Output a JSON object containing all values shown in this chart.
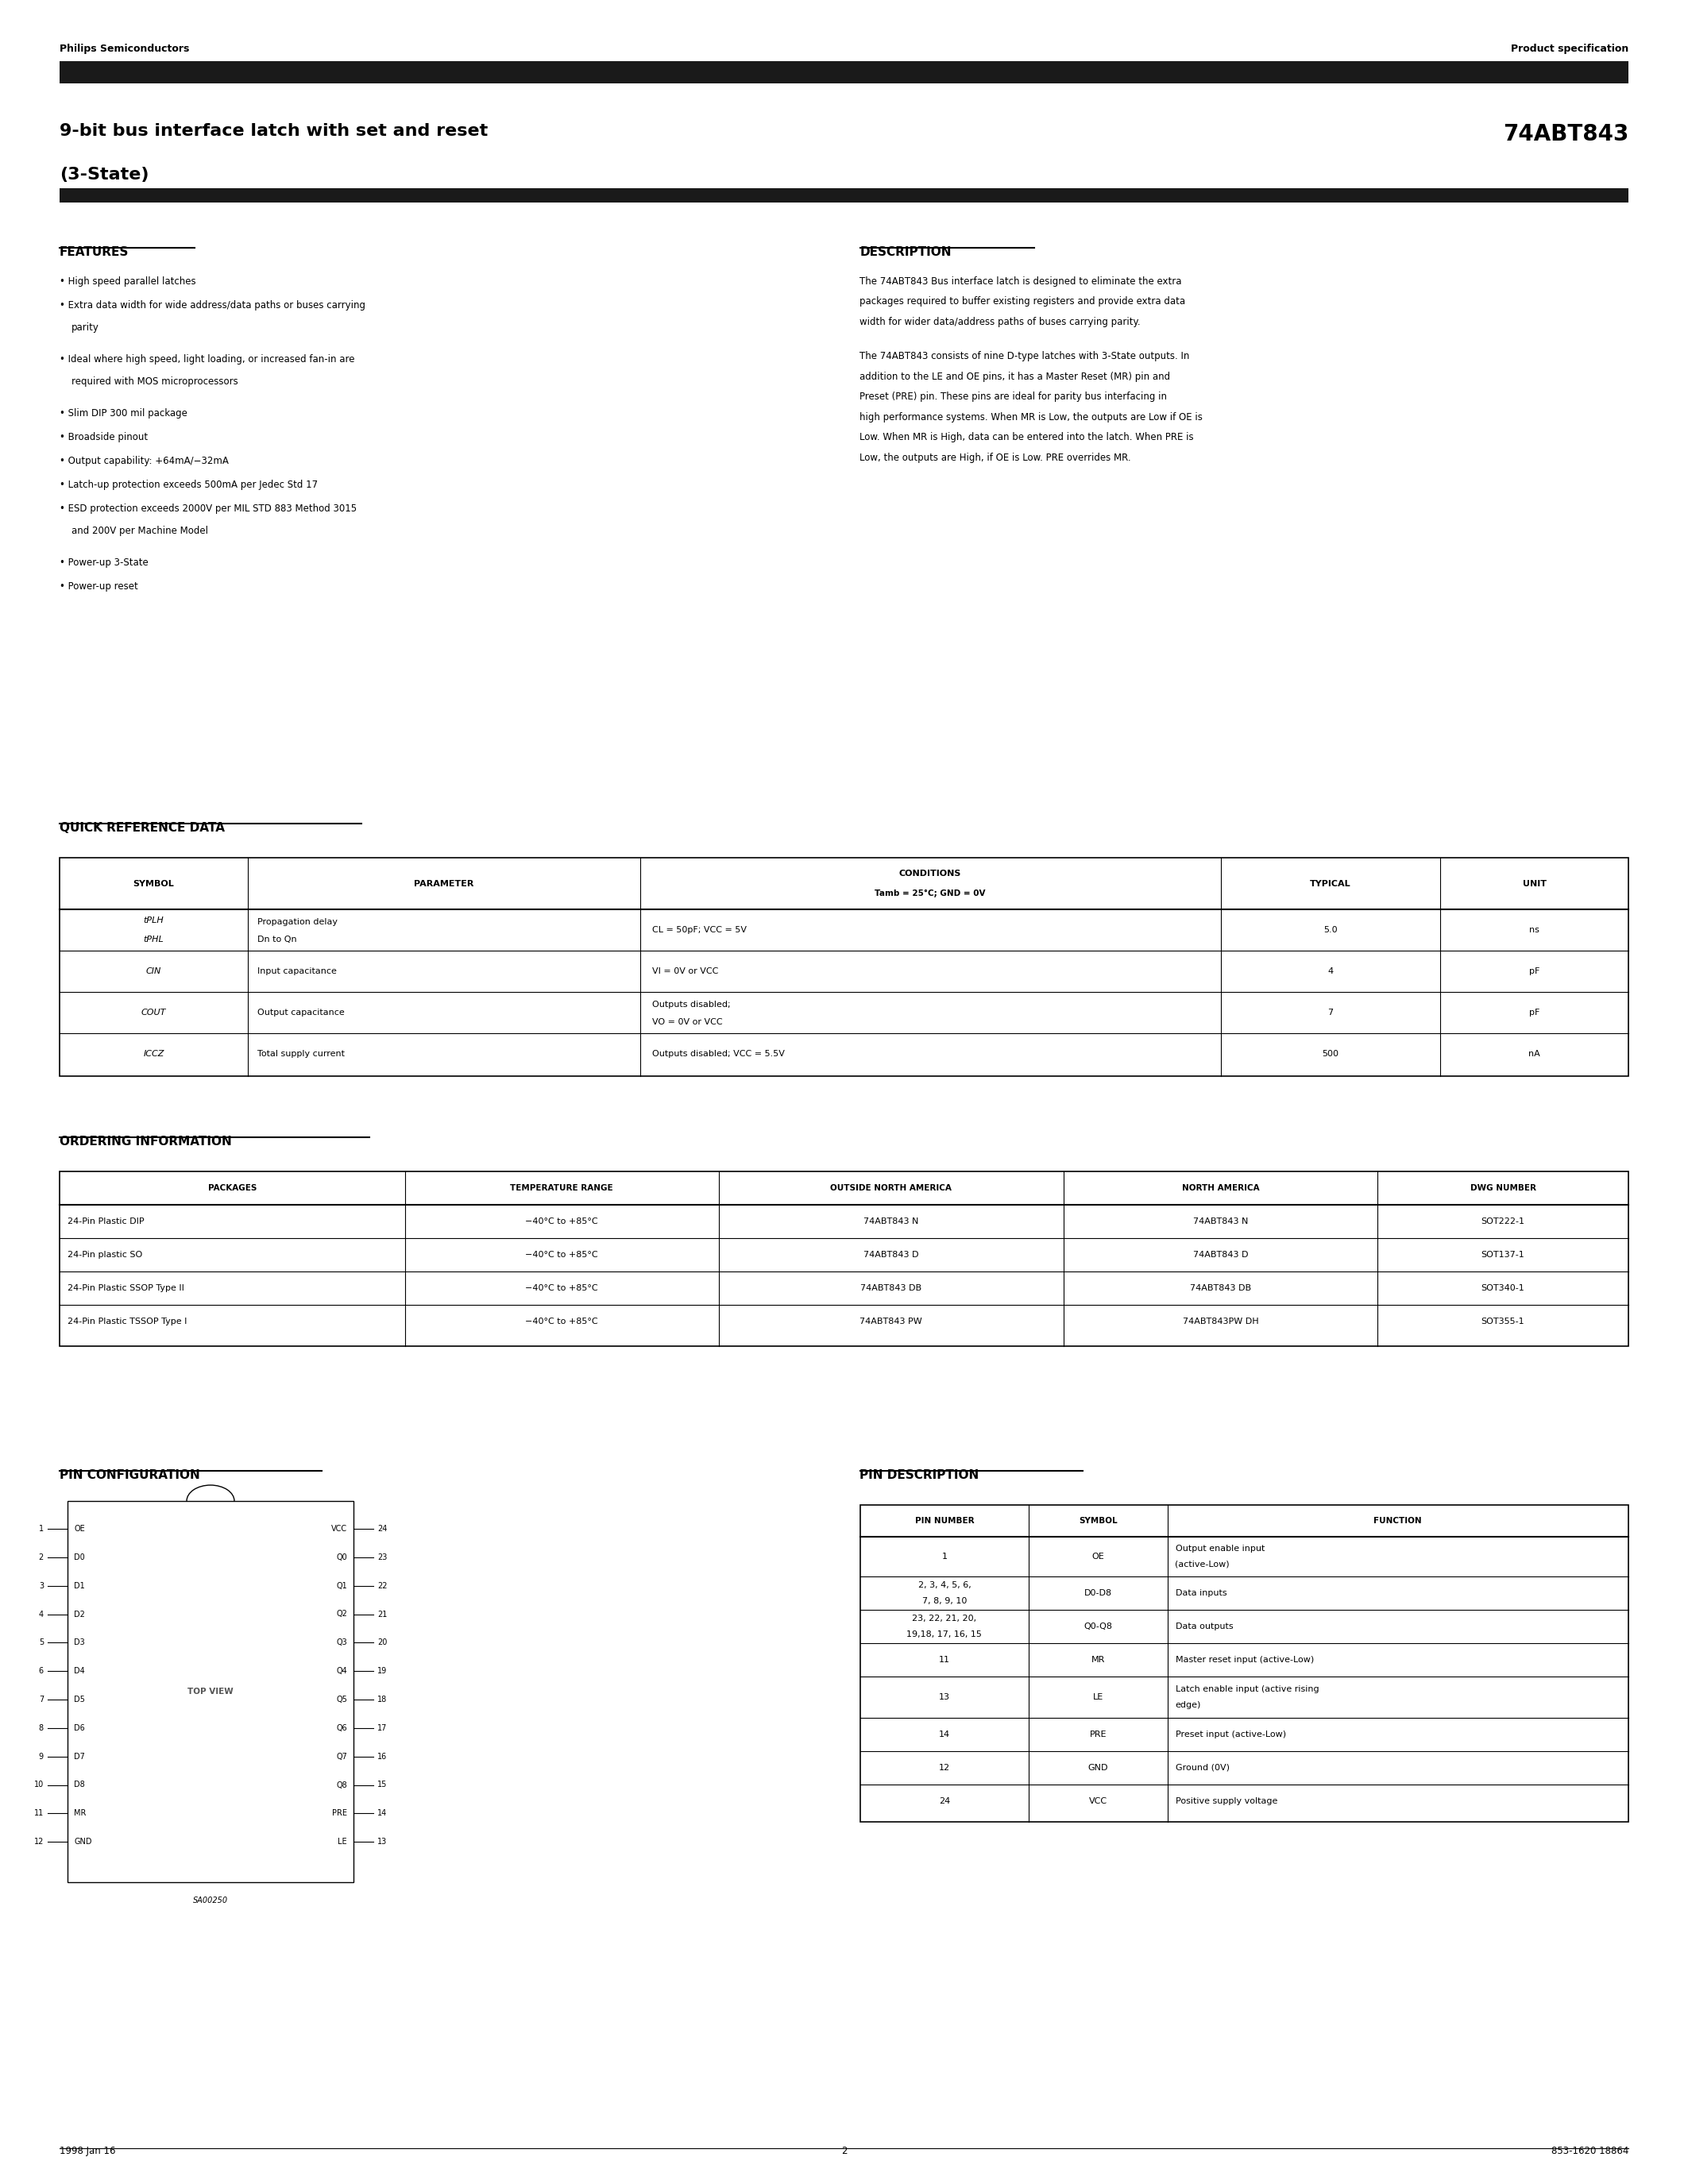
{
  "page_width": 21.25,
  "page_height": 27.5,
  "bg_color": "#ffffff",
  "text_color": "#000000",
  "header_bar_color": "#1a1a1a",
  "company": "Philips Semiconductors",
  "product_spec": "Product specification",
  "title_line1": "9-bit bus interface latch with set and reset",
  "title_line2": "(3-State)",
  "part_number": "74ABT843",
  "features_title": "FEATURES",
  "features": [
    "High speed parallel latches",
    "Extra data width for wide address/data paths or buses carrying\n    parity",
    "Ideal where high speed, light loading, or increased fan-in are\n    required with MOS microprocessors",
    "Slim DIP 300 mil package",
    "Broadside pinout",
    "Output capability: +64mA/−32mA",
    "Latch-up protection exceeds 500mA per Jedec Std 17",
    "ESD protection exceeds 2000V per MIL STD 883 Method 3015\n    and 200V per Machine Model",
    "Power-up 3-State",
    "Power-up reset"
  ],
  "description_title": "DESCRIPTION",
  "description_para1": "The 74ABT843 Bus interface latch is designed to eliminate the extra packages required to buffer existing registers and provide extra data width for wider data/address paths of buses carrying parity.",
  "description_para2": "The 74ABT843 consists of nine D-type latches with 3-State outputs. In addition to the LE and OE pins, it has a Master Reset (MR) pin and Preset (PRE) pin. These pins are ideal for parity bus interfacing in high performance systems. When MR is Low, the outputs are Low if OE is Low. When MR is High, data can be entered into the latch. When PRE is Low, the outputs are High, if OE is Low. PRE overrides MR.",
  "qrd_title": "QUICK REFERENCE DATA",
  "qrd_headers": [
    "SYMBOL",
    "PARAMETER",
    "CONDITIONS\nTamb = 25°C; GND = 0V",
    "TYPICAL",
    "UNIT"
  ],
  "qrd_rows": [
    [
      "tPLH\ntPHL",
      "Propagation delay\nDn to Qn",
      "CL = 50pF; VCC = 5V",
      "5.0",
      "ns"
    ],
    [
      "CIN",
      "Input capacitance",
      "VI = 0V or VCC",
      "4",
      "pF"
    ],
    [
      "COUT",
      "Output capacitance",
      "Outputs disabled;\nVO = 0V or VCC",
      "7",
      "pF"
    ],
    [
      "ICCZ",
      "Total supply current",
      "Outputs disabled; VCC = 5.5V",
      "500",
      "nA"
    ]
  ],
  "oi_title": "ORDERING INFORMATION",
  "oi_headers": [
    "PACKAGES",
    "TEMPERATURE RANGE",
    "OUTSIDE NORTH AMERICA",
    "NORTH AMERICA",
    "DWG NUMBER"
  ],
  "oi_rows": [
    [
      "24-Pin Plastic DIP",
      "−40°C to +85°C",
      "74ABT843 N",
      "74ABT843 N",
      "SOT222-1"
    ],
    [
      "24-Pin plastic SO",
      "−40°C to +85°C",
      "74ABT843 D",
      "74ABT843 D",
      "SOT137-1"
    ],
    [
      "24-Pin Plastic SSOP Type II",
      "−40°C to +85°C",
      "74ABT843 DB",
      "74ABT843 DB",
      "SOT340-1"
    ],
    [
      "24-Pin Plastic TSSOP Type I",
      "−40°C to +85°C",
      "74ABT843 PW",
      "74ABT843PW DH",
      "SOT355-1"
    ]
  ],
  "pc_title": "PIN CONFIGURATION",
  "pd_title": "PIN DESCRIPTION",
  "pd_headers": [
    "PIN NUMBER",
    "SYMBOL",
    "FUNCTION"
  ],
  "pd_rows": [
    [
      "1",
      "OE",
      "Output enable input\n(active-Low)"
    ],
    [
      "2, 3, 4, 5, 6,\n7, 8, 9, 10",
      "D0-D8",
      "Data inputs"
    ],
    [
      "23, 22, 21, 20,\n19,18, 17, 16, 15",
      "Q0-Q8",
      "Data outputs"
    ],
    [
      "11",
      "MR",
      "Master reset input (active-Low)"
    ],
    [
      "13",
      "LE",
      "Latch enable input (active rising\nedge)"
    ],
    [
      "14",
      "PRE",
      "Preset input (active-Low)"
    ],
    [
      "12",
      "GND",
      "Ground (0V)"
    ],
    [
      "24",
      "VCC",
      "Positive supply voltage"
    ]
  ],
  "footer_left": "1998 Jan 16",
  "footer_center": "2",
  "footer_right": "853-1620 18864"
}
